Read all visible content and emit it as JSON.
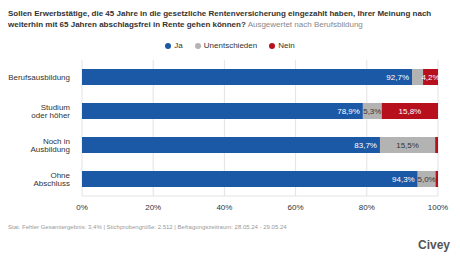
{
  "chart_data": {
    "type": "bar",
    "orientation": "horizontal",
    "stacked": true,
    "data_labels": true,
    "grid": true,
    "legend": "top",
    "tick_labels": true,
    "title": "Sollen Erwerbstätige, die 45 Jahre in die gesetzliche Rentenversicherung eingezahlt haben, Ihrer Meinung nach weiterhin mit 65 Jahren abschlagsfrei in Rente gehen können?",
    "subtitle": "Ausgewertet nach Berufsbildung",
    "categories": [
      "Berufsausbildung",
      "Studium oder höher",
      "Noch in Ausbildung",
      "Ohne Abschluss"
    ],
    "series": [
      {
        "name": "Ja",
        "color": "#1b59a6",
        "values": [
          92.7,
          78.9,
          83.7,
          94.3
        ],
        "value_labels": [
          "92,7%",
          "78,9%",
          "83,7%",
          "94,3%"
        ]
      },
      {
        "name": "Unentschieden",
        "color": "#b3b3b3",
        "values": [
          3.1,
          5.3,
          15.5,
          5.0
        ],
        "value_labels": [
          null,
          "5,3%",
          "15,5%",
          "5,0%"
        ]
      },
      {
        "name": "Nein",
        "color": "#b80f1c",
        "values": [
          4.2,
          15.8,
          0.8,
          0.7
        ],
        "value_labels": [
          "4,2%",
          "15,8%",
          null,
          null
        ]
      }
    ],
    "xlim": [
      0,
      100
    ],
    "xticks": [
      {
        "value": 0,
        "label": "0%"
      },
      {
        "value": 20,
        "label": "20%"
      },
      {
        "value": 40,
        "label": "40%"
      },
      {
        "value": 60,
        "label": "60%"
      },
      {
        "value": 80,
        "label": "80%"
      },
      {
        "value": 100,
        "label": "100%"
      }
    ],
    "annotations": [
      "Stat. Fehler Gesamtergebnis: 3,4% | Stichprobengröße: 2.512 | Befragungszeitraum: 28.05.24 - 29.05.24",
      "Civey"
    ]
  }
}
